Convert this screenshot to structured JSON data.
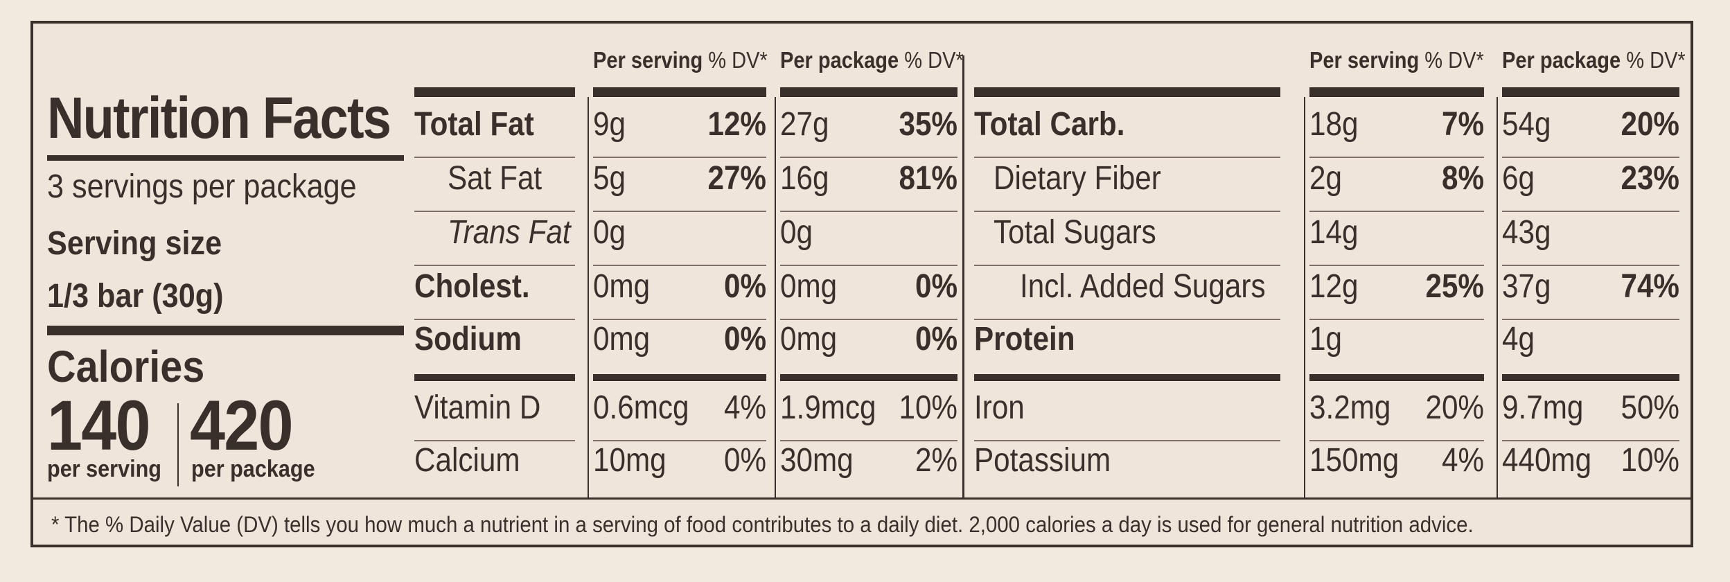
{
  "title": "Nutrition Facts",
  "servings_per_package": "3 servings per package",
  "serving_size_label": "Serving size",
  "serving_size_value": "1/3 bar (30g)",
  "calories_label": "Calories",
  "calories_per_serving": "140",
  "calories_per_package": "420",
  "per_serving_label": "per serving",
  "per_package_label": "per package",
  "headers": {
    "per_serving": "Per serving",
    "per_package": "Per package",
    "dv": "% DV*"
  },
  "left_rows": [
    {
      "name": "Total Fat",
      "s_amt": "9g",
      "s_dv": "12%",
      "p_amt": "27g",
      "p_dv": "35%"
    },
    {
      "name": "Sat Fat",
      "s_amt": "5g",
      "s_dv": "27%",
      "p_amt": "16g",
      "p_dv": "81%"
    },
    {
      "name": "Trans Fat",
      "s_amt": "0g",
      "s_dv": "",
      "p_amt": "0g",
      "p_dv": ""
    },
    {
      "name": "Cholest.",
      "s_amt": "0mg",
      "s_dv": "0%",
      "p_amt": "0mg",
      "p_dv": "0%"
    },
    {
      "name": "Sodium",
      "s_amt": "0mg",
      "s_dv": "0%",
      "p_amt": "0mg",
      "p_dv": "0%"
    },
    {
      "name": "Vitamin D",
      "s_amt": "0.6mcg",
      "s_dv": "4%",
      "p_amt": "1.9mcg",
      "p_dv": "10%"
    },
    {
      "name": "Calcium",
      "s_amt": "10mg",
      "s_dv": "0%",
      "p_amt": "30mg",
      "p_dv": "2%"
    }
  ],
  "right_rows": [
    {
      "name": "Total Carb.",
      "s_amt": "18g",
      "s_dv": "7%",
      "p_amt": "54g",
      "p_dv": "20%"
    },
    {
      "name": "Dietary Fiber",
      "s_amt": "2g",
      "s_dv": "8%",
      "p_amt": "6g",
      "p_dv": "23%"
    },
    {
      "name": "Total Sugars",
      "s_amt": "14g",
      "s_dv": "",
      "p_amt": "43g",
      "p_dv": ""
    },
    {
      "name": "Incl. Added Sugars",
      "s_amt": "12g",
      "s_dv": "25%",
      "p_amt": "37g",
      "p_dv": "74%"
    },
    {
      "name": "Protein",
      "s_amt": "1g",
      "s_dv": "",
      "p_amt": "4g",
      "p_dv": ""
    },
    {
      "name": "Iron",
      "s_amt": "3.2mg",
      "s_dv": "20%",
      "p_amt": "9.7mg",
      "p_dv": "50%"
    },
    {
      "name": "Potassium",
      "s_amt": "150mg",
      "s_dv": "4%",
      "p_amt": "440mg",
      "p_dv": "10%"
    }
  ],
  "footnote": "* The % Daily Value (DV) tells you how much a nutrient in a serving of food contributes to a daily diet. 2,000 calories a day is used for general nutrition advice."
}
